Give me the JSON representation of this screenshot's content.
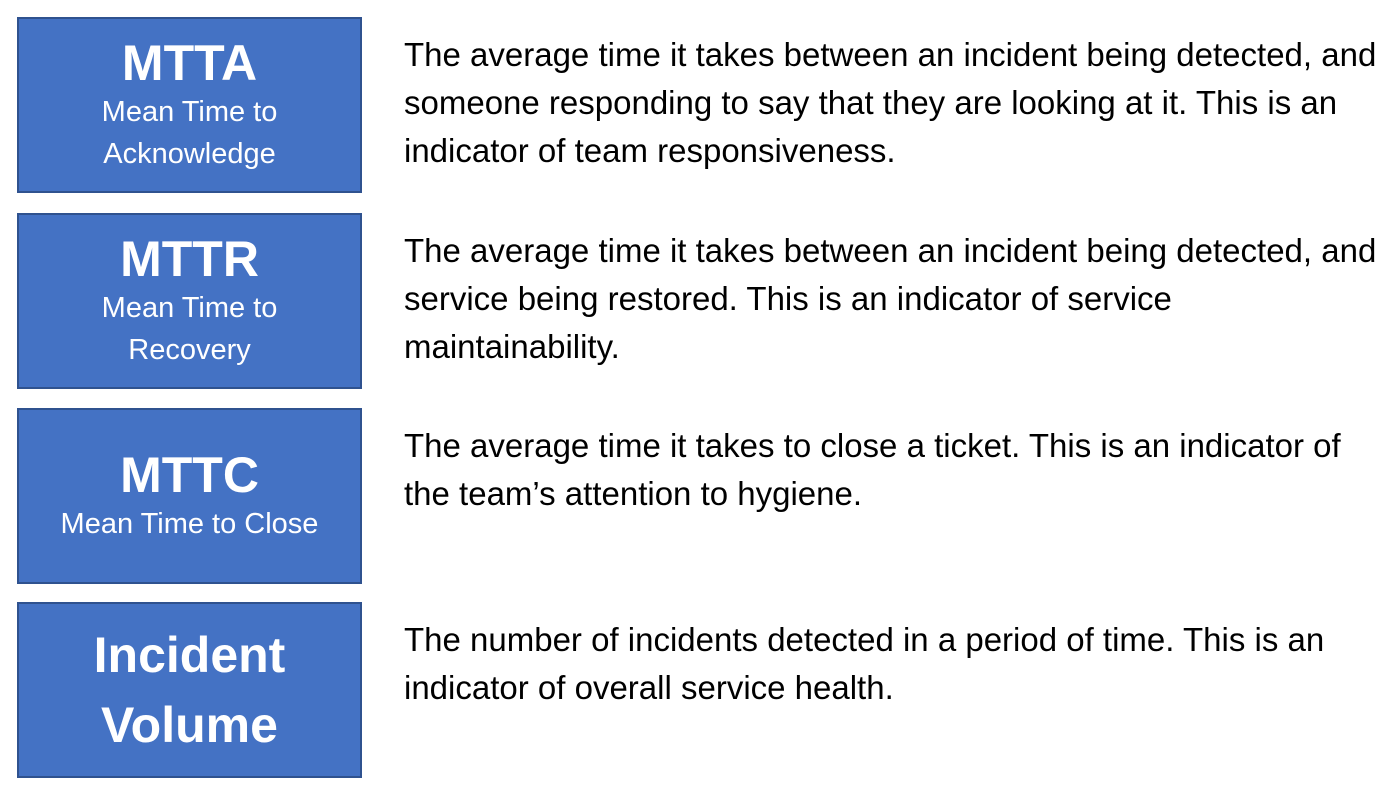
{
  "metrics": [
    {
      "abbr": "MTTA",
      "full_name": "Mean Time to\nAcknowledge",
      "description": "The average time it takes between an incident being detected, and someone responding to say that they are looking at it. This is an indicator of team responsiveness."
    },
    {
      "abbr": "MTTR",
      "full_name": "Mean Time to\nRecovery",
      "description": "The average time it takes between an incident being detected, and service being restored. This is an indicator of service maintainability."
    },
    {
      "abbr": "MTTC",
      "full_name": "Mean Time to Close",
      "description": "The average time it takes to close a ticket. This is an indicator of the team’s attention to hygiene."
    },
    {
      "name": "Incident\nVolume",
      "description": "The number of incidents detected in a period of time. This is an indicator of overall service health."
    }
  ],
  "colors": {
    "box_fill": "#4472c4",
    "box_border": "#2f528f",
    "box_text": "#ffffff",
    "description_text": "#000000"
  }
}
